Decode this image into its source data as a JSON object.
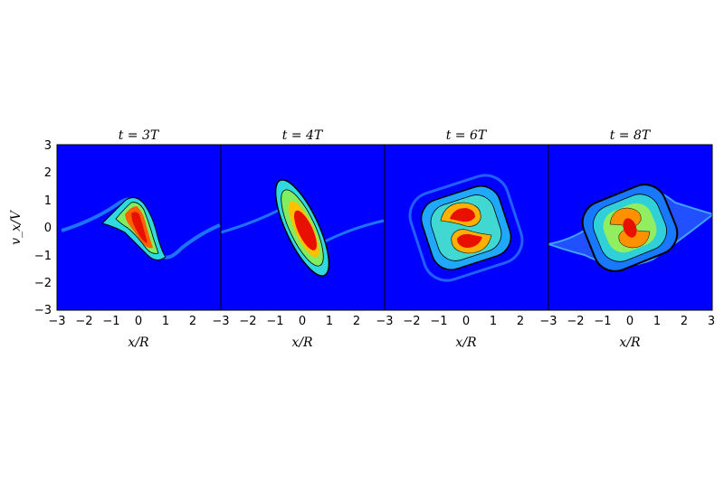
{
  "chart_data": {
    "type": "heatmap",
    "panels": [
      {
        "title": "t = 3T",
        "pattern": "sheared-s"
      },
      {
        "title": "t = 4T",
        "pattern": "tilted-ellipse"
      },
      {
        "title": "t = 6T",
        "pattern": "spiral"
      },
      {
        "title": "t = 8T",
        "pattern": "wound-spiral"
      }
    ],
    "xlabel": "x/R",
    "ylabel": "v_x/V",
    "xlim": [
      -3,
      3
    ],
    "ylim": [
      -3,
      3
    ],
    "xticks": [
      "−3",
      "−2",
      "−1",
      "0",
      "1",
      "2",
      "3"
    ],
    "yticks": [
      "3",
      "2",
      "1",
      "0",
      "−1",
      "−2",
      "−3"
    ],
    "colormap": [
      "#0000ff",
      "#00a0ff",
      "#40e0d0",
      "#90ee60",
      "#ffd000",
      "#ff7000",
      "#e81000"
    ],
    "background_color": "#0000ff"
  }
}
